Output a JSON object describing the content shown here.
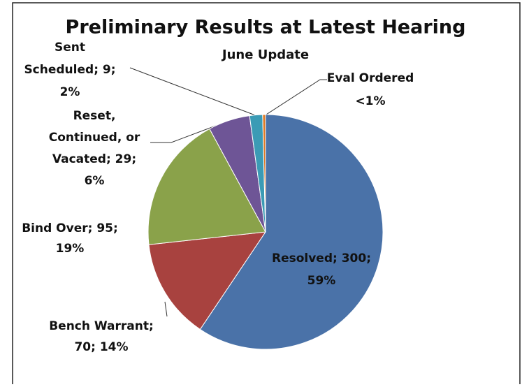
{
  "chart_data": {
    "type": "pie",
    "title": "Preliminary Results at Latest Hearing",
    "subtitle": "June Update",
    "values": [
      300,
      70,
      95,
      29,
      9,
      2
    ],
    "value_labels": [
      [
        "Resolved; 300;",
        "59%"
      ],
      [
        "Bench Warrant;",
        "70; 14%"
      ],
      [
        "Bind Over; 95;",
        "19%"
      ],
      [
        "Reset,",
        "Continued, or",
        "Vacated; 29;",
        "6%"
      ],
      [
        "Sent",
        "Scheduled; 9;",
        "2%"
      ],
      [
        "Eval Ordered",
        "<1%"
      ]
    ],
    "colors": [
      "#4a72a8",
      "#a8423f",
      "#8aa24a",
      "#6e5596",
      "#3b9bb5",
      "#e07b25"
    ]
  }
}
